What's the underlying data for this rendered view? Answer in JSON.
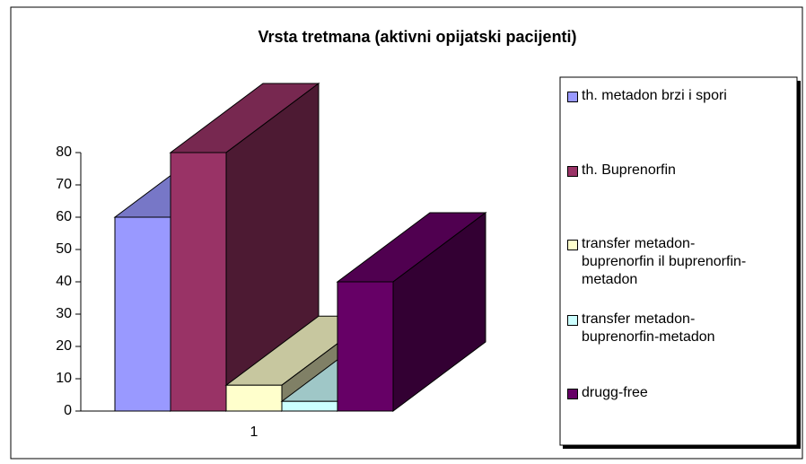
{
  "chart_data": {
    "type": "bar3d",
    "title": "Vrsta tretmana (aktivni opijatski pacijenti)",
    "categories": [
      "1"
    ],
    "series": [
      {
        "name": "th. metadon brzi i spori",
        "color": "#9999ff",
        "values": [
          60
        ]
      },
      {
        "name": "th. Buprenorfin",
        "color": "#993366",
        "values": [
          80
        ]
      },
      {
        "name": "transfer metadon-buprenorfin il buprenorfin-metadon",
        "color": "#ffffcc",
        "values": [
          8
        ]
      },
      {
        "name": "transfer metadon-buprenorfin-metadon",
        "color": "#ccffff",
        "values": [
          3
        ]
      },
      {
        "name": "drugg-free",
        "color": "#660066",
        "values": [
          40
        ]
      }
    ],
    "ylim": [
      0,
      80
    ],
    "yticks": [
      0,
      10,
      20,
      30,
      40,
      50,
      60,
      70,
      80
    ],
    "legend": "right"
  }
}
